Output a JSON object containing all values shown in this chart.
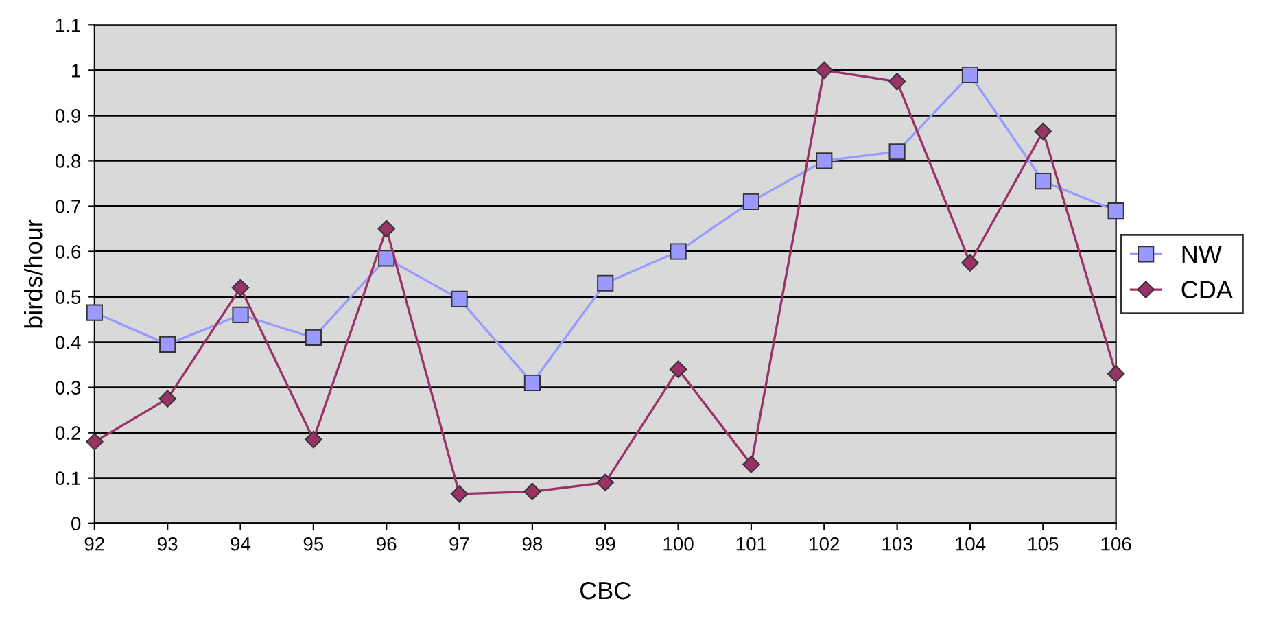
{
  "chart_data": {
    "type": "line",
    "xlabel": "CBC",
    "ylabel": "birds/hour",
    "categories": [
      "92",
      "93",
      "94",
      "95",
      "96",
      "97",
      "98",
      "99",
      "100",
      "101",
      "102",
      "103",
      "104",
      "105",
      "106"
    ],
    "series": [
      {
        "name": "NW",
        "color": "#9999ff",
        "marker": "square",
        "values": [
          0.465,
          0.395,
          0.46,
          0.41,
          0.585,
          0.495,
          0.31,
          0.53,
          0.6,
          0.71,
          0.8,
          0.82,
          0.99,
          0.755,
          0.69
        ]
      },
      {
        "name": "CDA",
        "color": "#993366",
        "marker": "diamond",
        "values": [
          0.18,
          0.275,
          0.52,
          0.185,
          0.65,
          0.065,
          0.07,
          0.09,
          0.34,
          0.13,
          1.0,
          0.975,
          0.575,
          0.865,
          0.33
        ]
      }
    ],
    "ylim": [
      0,
      1.1
    ],
    "yticks": [
      0,
      0.1,
      0.2,
      0.3,
      0.4,
      0.5,
      0.6,
      0.7,
      0.8,
      0.9,
      1,
      1.1
    ],
    "grid": "y",
    "legend": "right",
    "line_style": "solid"
  }
}
